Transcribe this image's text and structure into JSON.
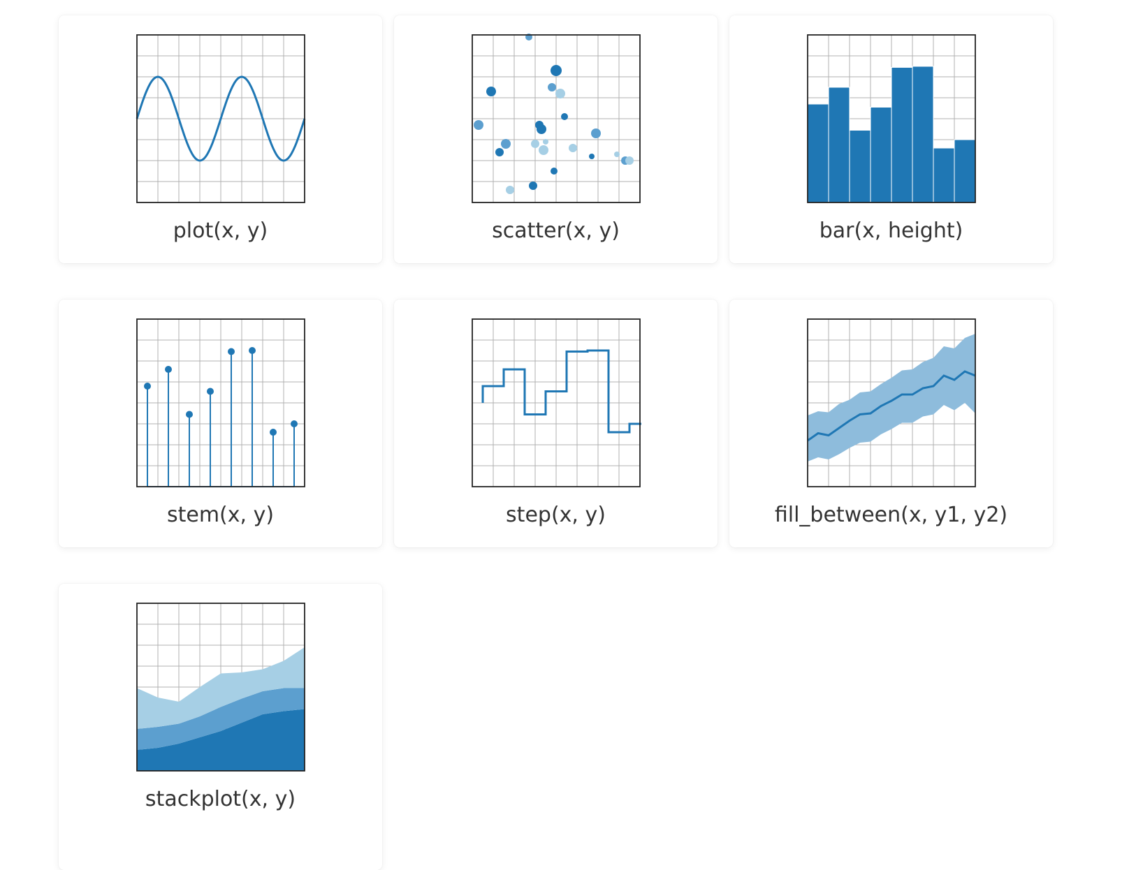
{
  "colors": {
    "dark": "#1f77b4",
    "mid": "#5c9fcf",
    "light": "#a6cfe5",
    "band": "#8ebcdc",
    "grid": "#b0b0b0",
    "frame": "#222222",
    "label": "#333333"
  },
  "gallery": [
    {
      "label": "plot(x, y)",
      "chart_data": {
        "type": "line",
        "x": [
          0,
          0.5,
          1,
          1.5,
          2,
          2.5,
          3,
          3.5,
          4,
          4.5,
          5,
          5.5,
          6,
          6.5,
          7,
          7.5,
          8
        ],
        "y": [
          4,
          5.4,
          6.0,
          5.4,
          4,
          2.6,
          2.0,
          2.6,
          4,
          5.4,
          6.0,
          5.4,
          4,
          2.6,
          2.0,
          2.6,
          4
        ],
        "xlim": [
          0,
          8
        ],
        "ylim": [
          0,
          8
        ],
        "color": "#1f77b4",
        "grid": true
      }
    },
    {
      "label": "scatter(x, y)",
      "chart_data": {
        "type": "scatter",
        "points": [
          {
            "x": 2.7,
            "y": 7.9,
            "s": 5,
            "shade": "mid"
          },
          {
            "x": 4.0,
            "y": 6.3,
            "s": 8,
            "shade": "dark"
          },
          {
            "x": 0.9,
            "y": 5.3,
            "s": 7,
            "shade": "dark"
          },
          {
            "x": 3.8,
            "y": 5.5,
            "s": 6,
            "shade": "mid"
          },
          {
            "x": 4.2,
            "y": 5.2,
            "s": 7,
            "shade": "light"
          },
          {
            "x": 4.4,
            "y": 4.1,
            "s": 5,
            "shade": "dark"
          },
          {
            "x": 0.3,
            "y": 3.7,
            "s": 7,
            "shade": "mid"
          },
          {
            "x": 3.2,
            "y": 3.7,
            "s": 6,
            "shade": "dark"
          },
          {
            "x": 3.3,
            "y": 3.5,
            "s": 7,
            "shade": "dark"
          },
          {
            "x": 5.9,
            "y": 3.3,
            "s": 7,
            "shade": "mid"
          },
          {
            "x": 1.6,
            "y": 2.8,
            "s": 7,
            "shade": "mid"
          },
          {
            "x": 3.0,
            "y": 2.8,
            "s": 6,
            "shade": "light"
          },
          {
            "x": 3.5,
            "y": 2.9,
            "s": 4,
            "shade": "light"
          },
          {
            "x": 1.3,
            "y": 2.4,
            "s": 6,
            "shade": "dark"
          },
          {
            "x": 3.4,
            "y": 2.5,
            "s": 7,
            "shade": "light"
          },
          {
            "x": 4.8,
            "y": 2.6,
            "s": 6,
            "shade": "light"
          },
          {
            "x": 5.7,
            "y": 2.2,
            "s": 4,
            "shade": "dark"
          },
          {
            "x": 6.9,
            "y": 2.3,
            "s": 4,
            "shade": "light"
          },
          {
            "x": 7.3,
            "y": 2.0,
            "s": 6,
            "shade": "mid"
          },
          {
            "x": 7.5,
            "y": 2.0,
            "s": 6,
            "shade": "light"
          },
          {
            "x": 3.9,
            "y": 1.5,
            "s": 5,
            "shade": "dark"
          },
          {
            "x": 2.9,
            "y": 0.8,
            "s": 6,
            "shade": "dark"
          },
          {
            "x": 1.8,
            "y": 0.6,
            "s": 6,
            "shade": "light"
          }
        ],
        "xlim": [
          0,
          8
        ],
        "ylim": [
          0,
          8
        ],
        "grid": true
      }
    },
    {
      "label": "bar(x, height)",
      "chart_data": {
        "type": "bar",
        "x": [
          0.5,
          1.5,
          2.5,
          3.5,
          4.5,
          5.5,
          6.5,
          7.5
        ],
        "values": [
          4.7,
          5.5,
          3.45,
          4.55,
          6.45,
          6.5,
          2.6,
          3.0
        ],
        "bar_width": 1,
        "xlim": [
          0,
          8
        ],
        "ylim": [
          0,
          8
        ],
        "color": "#1f77b4",
        "grid": true
      }
    },
    {
      "label": "stem(x, y)",
      "chart_data": {
        "type": "stem",
        "x": [
          0.5,
          1.5,
          2.5,
          3.5,
          4.5,
          5.5,
          6.5,
          7.5
        ],
        "y": [
          4.8,
          5.6,
          3.45,
          4.55,
          6.45,
          6.5,
          2.6,
          3.0
        ],
        "xlim": [
          0,
          8
        ],
        "ylim": [
          0,
          8
        ],
        "color": "#1f77b4",
        "grid": true
      }
    },
    {
      "label": "step(x, y)",
      "chart_data": {
        "type": "step",
        "x": [
          0.5,
          1.5,
          2.5,
          3.5,
          4.5,
          5.5,
          6.5,
          7.5
        ],
        "y": [
          4.8,
          5.6,
          3.45,
          4.55,
          6.45,
          6.5,
          2.6,
          3.0
        ],
        "where": "pre",
        "xlim": [
          0,
          8
        ],
        "ylim": [
          0,
          8
        ],
        "color": "#1f77b4",
        "grid": true
      }
    },
    {
      "label": "fill_between(x, y1, y2)",
      "chart_data": {
        "type": "area",
        "x": [
          0,
          0.5,
          1,
          1.5,
          2,
          2.5,
          3,
          3.5,
          4,
          4.5,
          5,
          5.5,
          6,
          6.5,
          7,
          7.5,
          8
        ],
        "y": [
          2.2,
          2.55,
          2.45,
          2.8,
          3.15,
          3.45,
          3.5,
          3.85,
          4.1,
          4.4,
          4.4,
          4.7,
          4.8,
          5.3,
          5.1,
          5.5,
          5.3
        ],
        "y1": [
          3.4,
          3.6,
          3.55,
          3.95,
          4.15,
          4.5,
          4.55,
          4.9,
          5.2,
          5.55,
          5.6,
          5.95,
          6.15,
          6.7,
          6.6,
          7.1,
          7.3
        ],
        "y2": [
          1.2,
          1.4,
          1.3,
          1.55,
          1.85,
          2.1,
          2.15,
          2.5,
          2.75,
          3.05,
          3.05,
          3.35,
          3.45,
          3.9,
          3.65,
          4.0,
          3.5
        ],
        "xlim": [
          0,
          8
        ],
        "ylim": [
          0,
          8
        ],
        "color": "#1f77b4",
        "grid": true
      }
    },
    {
      "label": "stackplot(x, y)",
      "chart_data": {
        "type": "stacked_area",
        "x": [
          0,
          1,
          2,
          3,
          4,
          5,
          6,
          7,
          8
        ],
        "series": [
          {
            "values": [
              1.0,
              1.1,
              1.3,
              1.6,
              1.9,
              2.3,
              2.7,
              2.85,
              2.95
            ],
            "shade": "dark"
          },
          {
            "values": [
              1.0,
              1.0,
              0.95,
              1.0,
              1.15,
              1.15,
              1.1,
              1.1,
              1.0
            ],
            "shade": "mid"
          },
          {
            "values": [
              1.95,
              1.4,
              1.05,
              1.4,
              1.6,
              1.25,
              1.05,
              1.3,
              1.95
            ],
            "shade": "light"
          }
        ],
        "xlim": [
          0,
          8
        ],
        "ylim": [
          0,
          8
        ],
        "grid": true
      }
    }
  ]
}
